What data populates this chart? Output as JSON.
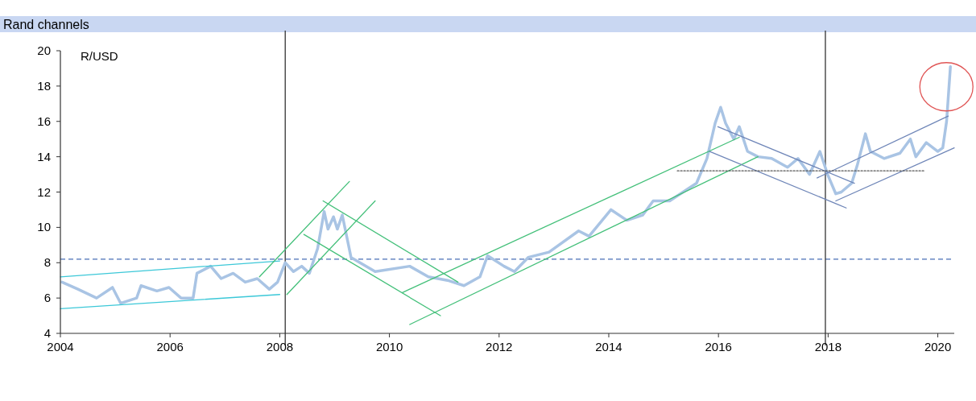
{
  "chart_data": {
    "type": "line",
    "title": "Rand channels",
    "ylabel": "R/USD",
    "xlim": [
      2004,
      2020.3
    ],
    "xticks": [
      2004,
      2006,
      2008,
      2010,
      2012,
      2014,
      2016,
      2018,
      2020
    ],
    "ylim": [
      4,
      20
    ],
    "yticks": [
      4,
      6,
      8,
      10,
      12,
      14,
      16,
      18,
      20
    ],
    "x": [
      2004.03,
      2004.32,
      2004.66,
      2004.95,
      2005.1,
      2005.39,
      2005.47,
      2005.76,
      2005.98,
      2006.2,
      2006.42,
      2006.49,
      2006.74,
      2006.93,
      2007.15,
      2007.37,
      2007.59,
      2007.81,
      2007.96,
      2008.1,
      2008.25,
      2008.4,
      2008.54,
      2008.69,
      2008.81,
      2008.88,
      2008.98,
      2009.05,
      2009.14,
      2009.3,
      2009.74,
      2010.37,
      2010.71,
      2011.06,
      2011.36,
      2011.65,
      2011.79,
      2012.09,
      2012.28,
      2012.53,
      2012.91,
      2013.45,
      2013.64,
      2014.04,
      2014.33,
      2014.62,
      2014.81,
      2015.11,
      2015.6,
      2015.79,
      2015.94,
      2016.04,
      2016.13,
      2016.28,
      2016.38,
      2016.53,
      2016.72,
      2016.97,
      2017.26,
      2017.45,
      2017.66,
      2017.85,
      2017.99,
      2018.14,
      2018.24,
      2018.43,
      2018.53,
      2018.68,
      2018.77,
      2019.02,
      2019.31,
      2019.5,
      2019.6,
      2019.79,
      2020.0,
      2020.09,
      2020.16,
      2020.23
    ],
    "series": [
      {
        "color": "#a9c4e4",
        "values": [
          6.9,
          6.5,
          6.0,
          6.6,
          5.7,
          6.0,
          6.7,
          6.4,
          6.6,
          6.0,
          6.0,
          7.4,
          7.8,
          7.1,
          7.4,
          6.9,
          7.1,
          6.5,
          6.9,
          8.0,
          7.5,
          7.8,
          7.4,
          8.8,
          10.9,
          9.9,
          10.6,
          9.9,
          10.7,
          8.3,
          7.5,
          7.8,
          7.2,
          7.0,
          6.7,
          7.2,
          8.4,
          7.8,
          7.5,
          8.3,
          8.6,
          9.8,
          9.5,
          11.0,
          10.4,
          10.7,
          11.5,
          11.5,
          12.5,
          13.9,
          15.9,
          16.8,
          15.9,
          15.0,
          15.7,
          14.3,
          14.0,
          13.9,
          13.4,
          13.9,
          13.0,
          14.3,
          13.0,
          11.9,
          12.0,
          12.5,
          13.5,
          15.3,
          14.3,
          13.9,
          14.2,
          15.0,
          14.0,
          14.8,
          14.3,
          14.5,
          16.0,
          19.1
        ]
      },
      {
        "color": "#3cc8d8",
        "x": [
          2004,
          2008.0
        ],
        "values": [
          7.2,
          8.1
        ]
      },
      {
        "color": "#3cc8d8",
        "x": [
          2004,
          2008.0
        ],
        "values": [
          5.4,
          6.2
        ]
      },
      {
        "color": "#44c07a",
        "x": [
          2007.63,
          2009.27
        ],
        "values": [
          7.2,
          12.6
        ]
      },
      {
        "color": "#44c07a",
        "x": [
          2008.13,
          2009.74
        ],
        "values": [
          6.2,
          11.5
        ]
      },
      {
        "color": "#44c07a",
        "x": [
          2008.79,
          2011.25
        ],
        "values": [
          11.5,
          6.9
        ]
      },
      {
        "color": "#44c07a",
        "x": [
          2008.44,
          2010.93
        ],
        "values": [
          9.6,
          5.0
        ]
      },
      {
        "color": "#44c07a",
        "x": [
          2010.23,
          2016.38
        ],
        "values": [
          6.3,
          15.1
        ]
      },
      {
        "color": "#44c07a",
        "x": [
          2010.37,
          2016.72
        ],
        "values": [
          4.5,
          14.0
        ]
      },
      {
        "color": "#6f86b8",
        "x": [
          2015.99,
          2018.48
        ],
        "values": [
          15.7,
          12.5
        ]
      },
      {
        "color": "#6f86b8",
        "x": [
          2015.84,
          2018.33
        ],
        "values": [
          14.3,
          11.1
        ]
      },
      {
        "color": "#6f86b8",
        "x": [
          2017.8,
          2020.19
        ],
        "values": [
          12.8,
          16.3
        ]
      },
      {
        "color": "#6f86b8",
        "x": [
          2018.14,
          2020.3
        ],
        "values": [
          11.5,
          14.5
        ]
      },
      {
        "color": "#555555",
        "x": [
          2015.25,
          2019.75
        ],
        "values": [
          13.2,
          13.2
        ],
        "line_style": "dotted"
      }
    ],
    "ref_lines": [
      {
        "axis": "y",
        "value": 8.2,
        "color": "#4a6fb5",
        "line_style": "dashed"
      },
      {
        "axis": "x",
        "value": 2008.1,
        "color": "#333333"
      },
      {
        "axis": "x",
        "value": 2017.95,
        "color": "#333333"
      }
    ]
  }
}
